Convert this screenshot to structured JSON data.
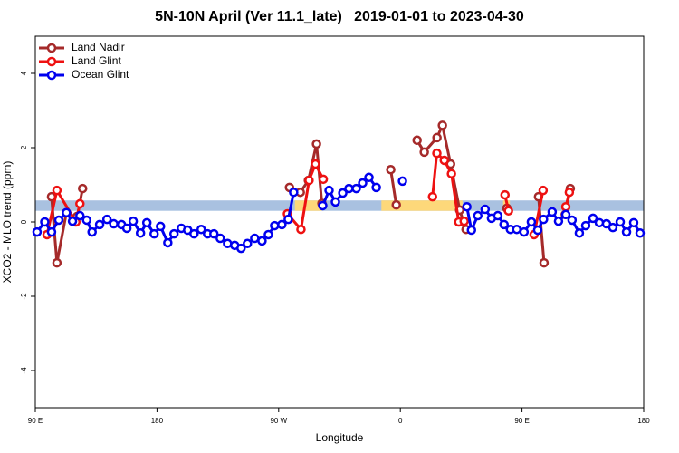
{
  "chart_data": {
    "type": "line",
    "title": "5N-10N April (Ver 11.1_late)   2019-01-01 to 2023-04-30",
    "xlabel": "Longitude",
    "ylabel": "XCO2 - MLO trend (ppm)",
    "xlim": [
      90,
      540
    ],
    "ylim": [
      -5,
      5
    ],
    "xticks": [
      {
        "value": 90,
        "label": "90 E"
      },
      180,
      {
        "value": 270,
        "label": "90 W"
      },
      {
        "value": 360,
        "label": "0"
      },
      {
        "value": 450,
        "label": "90 E"
      },
      {
        "value": 540,
        "label": "180"
      }
    ],
    "yticks": [
      -4,
      -2,
      0,
      2,
      4
    ],
    "legend": "top-left",
    "band": {
      "ylim": [
        0.3,
        0.58
      ],
      "color": "#a9c1e0",
      "segments": [
        {
          "xlim": [
            282,
            302
          ],
          "color": "#fdd87a"
        },
        {
          "xlim": [
            346,
            406
          ],
          "color": "#fdd87a"
        },
        {
          "xlim": [
            436,
            441
          ],
          "color": "#fdd87a"
        }
      ]
    },
    "series": [
      {
        "name": "Land Nadir",
        "color": "#a52a2a",
        "x": [
          102,
          106,
          113,
          null,
          121,
          125,
          null,
          278,
          286,
          292,
          298,
          302,
          null,
          352.9,
          357,
          null,
          372.4,
          377.7,
          387.1,
          391.1,
          397.2,
          403.9,
          408.6,
          null,
          438.8,
          null,
          462.2,
          466.3,
          null,
          482,
          485.7
        ],
        "values": [
          0.68,
          -1.1,
          0.25,
          null,
          0.15,
          0.9,
          null,
          0.93,
          0.8,
          1.12,
          2.1,
          0.5,
          null,
          1.41,
          0.46,
          null,
          2.2,
          1.88,
          2.27,
          2.6,
          1.56,
          0.32,
          -0.2,
          null,
          0.37,
          null,
          0.68,
          -1.1,
          null,
          0.2,
          0.9
        ]
      },
      {
        "name": "Land Glint",
        "color": "#ee1111",
        "x": [
          98.7,
          106,
          120,
          123,
          null,
          276.5,
          286.5,
          292.5,
          297.2,
          303,
          null,
          383.8,
          387,
          392.5,
          397.8,
          403.2,
          407.2,
          null,
          437.4,
          440,
          null,
          458.9,
          465.6,
          null,
          482.4,
          485
        ],
        "values": [
          -0.34,
          0.85,
          0.0,
          0.49,
          null,
          0.22,
          -0.2,
          1.12,
          1.56,
          1.15,
          null,
          0.68,
          1.85,
          1.66,
          1.3,
          0.0,
          0.02,
          null,
          0.73,
          0.3,
          null,
          -0.34,
          0.85,
          null,
          0.41,
          0.8
        ]
      },
      {
        "name": "Ocean Glint",
        "color": "#0000ee",
        "x": [
          91.3,
          97,
          102,
          107.4,
          113,
          117.5,
          123,
          128,
          132,
          137.6,
          143,
          148,
          153.7,
          157.7,
          162.4,
          167.8,
          172.5,
          177.9,
          182.6,
          188,
          192.6,
          198,
          202.7,
          207.4,
          212.7,
          217.4,
          222.1,
          226.8,
          232.2,
          237.5,
          242.2,
          246.9,
          252.3,
          257.7,
          262.4,
          267,
          272.4,
          277.1,
          281.1,
          null,
          302.6,
          307.3,
          312,
          317.4,
          322,
          327.4,
          332.1,
          336.8,
          342.2,
          null,
          361.6,
          null,
          409.2,
          412.6,
          417.3,
          422.7,
          427.4,
          432.1,
          436.7,
          441.4,
          446.1,
          451.5,
          456.9,
          461.6,
          465.9,
          472.3,
          477,
          482.4,
          487,
          492.4,
          497.1,
          502.5,
          507.2,
          512.5,
          517.2,
          522.6,
          527.3,
          532.6,
          537.3
        ],
        "values": [
          -0.27,
          0,
          -0.27,
          0.05,
          0.25,
          0.02,
          0.17,
          0.05,
          -0.27,
          -0.07,
          0.07,
          -0.05,
          -0.07,
          -0.17,
          0.02,
          -0.3,
          -0.02,
          -0.32,
          -0.12,
          -0.56,
          -0.32,
          -0.17,
          -0.22,
          -0.32,
          -0.2,
          -0.32,
          -0.32,
          -0.44,
          -0.58,
          -0.63,
          -0.71,
          -0.58,
          -0.44,
          -0.51,
          -0.34,
          -0.1,
          -0.07,
          0.07,
          0.8,
          null,
          0.44,
          0.85,
          0.54,
          0.78,
          0.9,
          0.9,
          1.05,
          1.2,
          0.93,
          null,
          1.1,
          null,
          0.41,
          -0.22,
          0.17,
          0.34,
          0.1,
          0.17,
          -0.07,
          -0.2,
          -0.2,
          -0.27,
          0,
          -0.22,
          0.07,
          0.27,
          0.02,
          0.2,
          0.05,
          -0.3,
          -0.1,
          0.1,
          -0.02,
          -0.05,
          -0.15,
          0,
          -0.27,
          -0.02,
          -0.3
        ]
      }
    ]
  }
}
